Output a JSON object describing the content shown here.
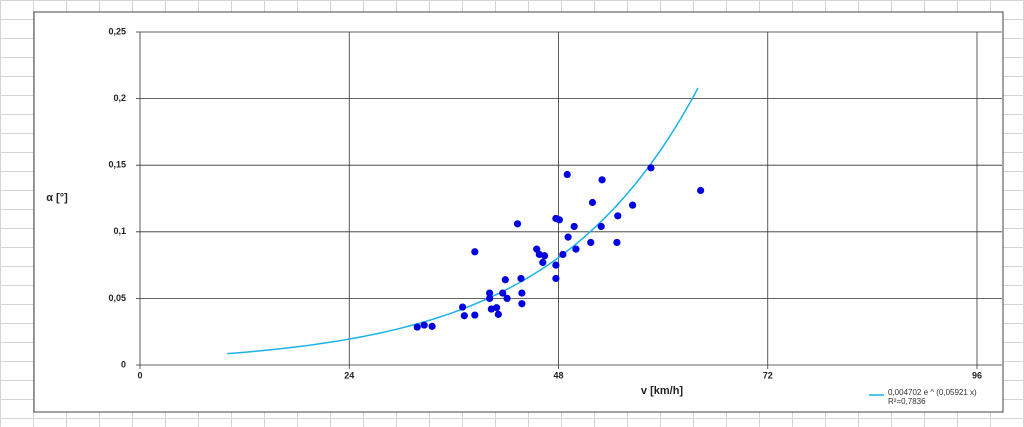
{
  "chart_data": {
    "type": "scatter",
    "x_label": "v [km/h]",
    "y_label": "α [°]",
    "xlim": [
      0,
      96
    ],
    "xticks": [
      0,
      24,
      48,
      72,
      96
    ],
    "ylim": [
      0,
      0.25
    ],
    "yticks": [
      0,
      {
        "value": 0.05,
        "label": "0,05"
      },
      {
        "value": 0.1,
        "label": "0,1"
      },
      {
        "value": 0.15,
        "label": "0,15"
      },
      {
        "value": 0.2,
        "label": "0,2"
      },
      {
        "value": 0.25,
        "label": "0,25"
      }
    ],
    "grid": true,
    "series": [
      {
        "color": "#0000e0",
        "x": [
          31.8,
          32.6,
          33.5,
          37.0,
          37.2,
          38.4,
          38.4,
          40.1,
          40.1,
          40.3,
          40.9,
          41.1,
          41.6,
          41.9,
          42.1,
          43.3,
          43.7,
          43.8,
          43.8,
          45.5,
          45.8,
          46.2,
          46.4,
          47.7,
          47.7,
          47.7,
          48.1,
          48.5,
          49.0,
          49.1,
          49.8,
          50.0,
          51.7,
          51.9,
          52.9,
          53.0,
          54.7,
          54.8,
          56.5,
          58.6,
          64.3
        ],
        "values": [
          0.0285,
          0.03,
          0.029,
          0.0435,
          0.037,
          0.0375,
          0.085,
          0.054,
          0.05,
          0.042,
          0.043,
          0.038,
          0.054,
          0.064,
          0.05,
          0.106,
          0.065,
          0.054,
          0.046,
          0.087,
          0.083,
          0.077,
          0.082,
          0.065,
          0.075,
          0.11,
          0.109,
          0.083,
          0.143,
          0.096,
          0.104,
          0.087,
          0.092,
          0.122,
          0.104,
          0.139,
          0.092,
          0.112,
          0.12,
          0.148,
          0.131
        ]
      }
    ],
    "trendline": {
      "a": 0.004702,
      "b": 0.05921,
      "x_range": [
        10,
        64
      ],
      "color": "#1ab2e8",
      "label": "0,004702 e ^ (0,05921 x)",
      "r2_label": "R²=0,7836"
    },
    "legend": "bottom-right"
  }
}
